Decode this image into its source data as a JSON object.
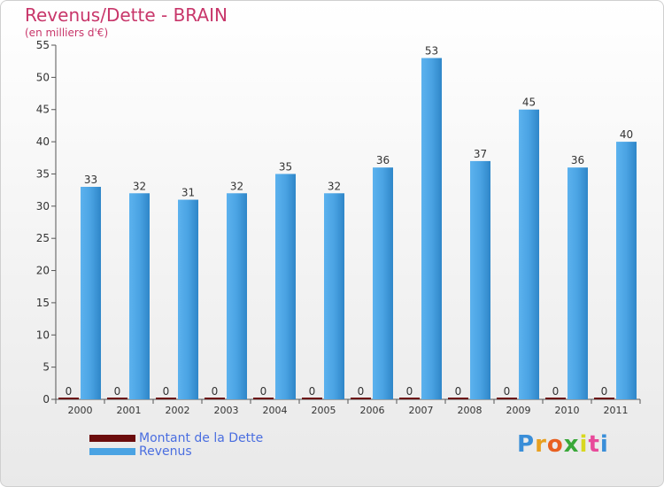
{
  "chart_data": {
    "type": "bar",
    "title": "Revenus/Dette - BRAIN",
    "subtitle": "(en milliers d'€)",
    "categories": [
      "2000",
      "2001",
      "2002",
      "2003",
      "2004",
      "2005",
      "2006",
      "2007",
      "2008",
      "2009",
      "2010",
      "2011"
    ],
    "series": [
      {
        "name": "Montant de la Dette",
        "color": "#6b0c0c",
        "values": [
          0,
          0,
          0,
          0,
          0,
          0,
          0,
          0,
          0,
          0,
          0,
          0
        ]
      },
      {
        "name": "Revenus",
        "color": "#4aa3e3",
        "values": [
          33,
          32,
          31,
          32,
          35,
          32,
          36,
          53,
          37,
          45,
          36,
          40
        ]
      }
    ],
    "ylim": [
      0,
      55
    ],
    "yticks": [
      0,
      5,
      10,
      15,
      20,
      25,
      30,
      35,
      40,
      45,
      50,
      55
    ],
    "grid": false,
    "legend": "bottom-left"
  },
  "logo": {
    "letters": [
      "P",
      "r",
      "o",
      "x",
      "i",
      "t",
      "i"
    ],
    "colors": [
      "#3a8ed8",
      "#e8a020",
      "#e86020",
      "#3aa83a",
      "#d8d820",
      "#e84a9a",
      "#3a8ed8"
    ]
  }
}
